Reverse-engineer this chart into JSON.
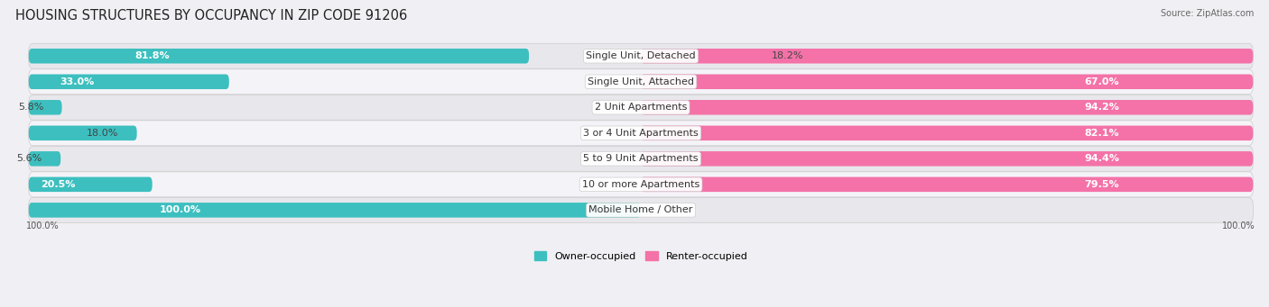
{
  "title": "HOUSING STRUCTURES BY OCCUPANCY IN ZIP CODE 91206",
  "source": "Source: ZipAtlas.com",
  "categories": [
    "Single Unit, Detached",
    "Single Unit, Attached",
    "2 Unit Apartments",
    "3 or 4 Unit Apartments",
    "5 to 9 Unit Apartments",
    "10 or more Apartments",
    "Mobile Home / Other"
  ],
  "owner_pct": [
    81.8,
    33.0,
    5.8,
    18.0,
    5.6,
    20.5,
    100.0
  ],
  "renter_pct": [
    18.2,
    67.0,
    94.2,
    82.1,
    94.4,
    79.5,
    0.0
  ],
  "owner_color": "#3DBFBF",
  "renter_color": "#F472A8",
  "row_colors": [
    "#e8e8ec",
    "#f4f4f8"
  ],
  "title_fontsize": 10.5,
  "bar_label_fontsize": 8.0,
  "cat_label_fontsize": 8.0,
  "bar_height": 0.58,
  "figsize": [
    14.06,
    3.41
  ],
  "legend_labels": [
    "Owner-occupied",
    "Renter-occupied"
  ],
  "bottom_labels": [
    "100.0%",
    "100.0%"
  ],
  "source_text": "Source: ZipAtlas.com"
}
